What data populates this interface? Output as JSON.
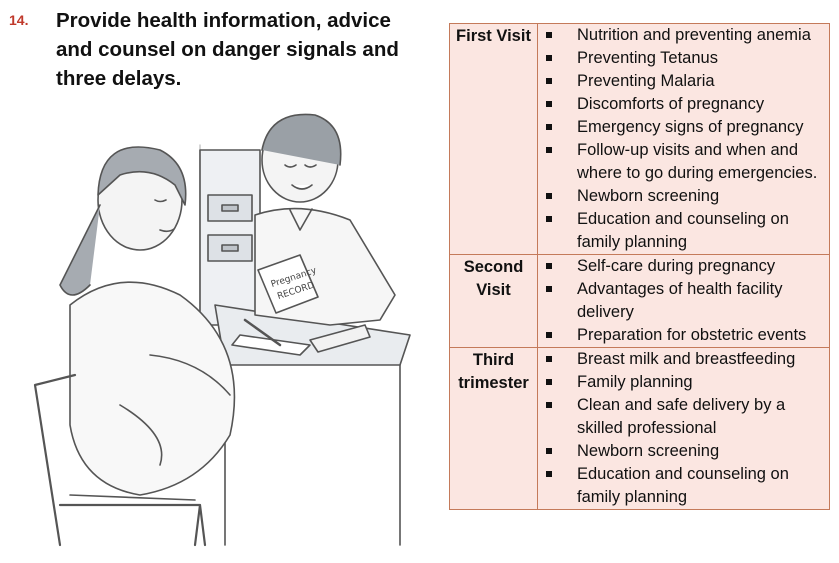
{
  "step": {
    "number": "14.",
    "heading": "Provide health information, advice and counsel on danger signals and three delays."
  },
  "illustration": {
    "record_text_line1": "Pregnancy",
    "record_text_line2": "RECORD"
  },
  "visits": [
    {
      "label": "First Visit",
      "topics": [
        "Nutrition and preventing anemia",
        "Preventing Tetanus",
        "Preventing Malaria",
        "Discomforts of pregnancy",
        "Emergency signs of pregnancy",
        "Follow-up visits and when and where to go during emergencies.",
        "Newborn screening",
        "Education and counseling on family planning"
      ]
    },
    {
      "label": "Second Visit",
      "topics": [
        "Self-care during pregnancy",
        "Advantages of health facility delivery",
        "Preparation for obstetric events"
      ]
    },
    {
      "label": "Third trimester",
      "topics": [
        "Breast milk and breastfeeding",
        "Family planning",
        "Clean and safe delivery by a skilled professional",
        "Newborn screening",
        "Education and counseling on family planning"
      ]
    }
  ],
  "colors": {
    "step_number": "#c0392b",
    "table_background": "#fbe6e1",
    "table_border": "#c47a5a"
  }
}
